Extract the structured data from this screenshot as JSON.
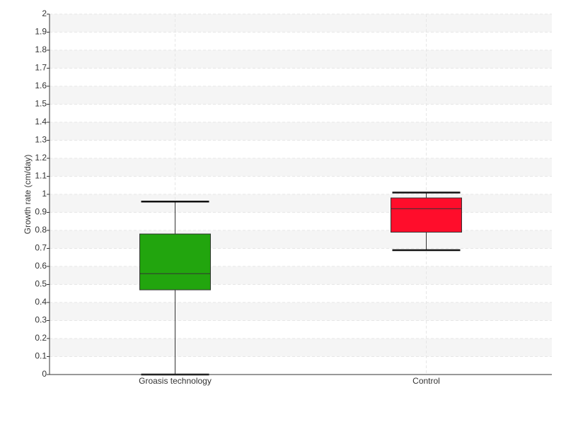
{
  "chart_data": {
    "type": "box",
    "y_label": "Growth rate (cm/day)",
    "categories": [
      "Groasis technology",
      "Control"
    ],
    "colors": [
      "#22a50e",
      "#ff0d2b"
    ],
    "min": [
      0,
      0.69
    ],
    "q1": [
      0.47,
      0.79
    ],
    "median": [
      0.56,
      0.92
    ],
    "q3": [
      0.78,
      0.98
    ],
    "max": [
      0.96,
      1.01
    ],
    "ylim": [
      0,
      2
    ],
    "yticks": [
      0,
      0.1,
      0.2,
      0.3,
      0.4,
      0.5,
      0.6,
      0.7,
      0.8,
      0.9,
      1,
      1.1,
      1.2,
      1.3,
      1.4,
      1.5,
      1.6,
      1.7,
      1.8,
      1.9,
      2
    ],
    "grid": true
  }
}
